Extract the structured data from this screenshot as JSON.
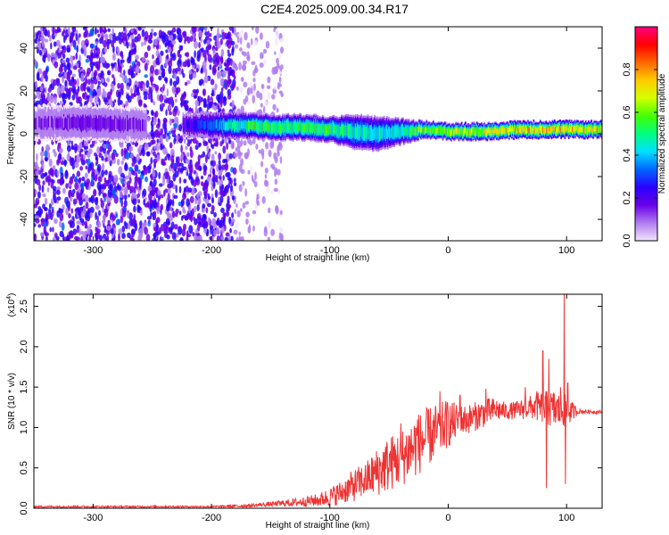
{
  "page": {
    "title": "C2E4.2025.009.00.34.R17"
  },
  "chart_data": [
    {
      "type": "heatmap",
      "xlabel": "Height of straight line (km)",
      "ylabel": "Frequency (Hz)",
      "xlim": [
        -350,
        130
      ],
      "ylim": [
        -50,
        50
      ],
      "xticks": [
        -300,
        -200,
        -100,
        0,
        100
      ],
      "yticks": [
        -40,
        -20,
        0,
        20,
        40
      ],
      "colorbar": {
        "label": "Normalized spectral amplitude",
        "range": [
          0.0,
          1.0
        ],
        "ticks": [
          0.0,
          0.2,
          0.4,
          0.6,
          0.8
        ],
        "colors": [
          "#f3e6fb",
          "#b07cf0",
          "#6a00e8",
          "#2a00ff",
          "#0066ff",
          "#00e0ff",
          "#00ff80",
          "#44ff00",
          "#d4ff00",
          "#ffcc00",
          "#ff6600",
          "#ff0000",
          "#ff0080"
        ]
      },
      "band": {
        "x": [
          -350,
          -300,
          -250,
          -220,
          -180,
          -150,
          -120,
          -100,
          -80,
          -60,
          -40,
          -20,
          0,
          20,
          40,
          60,
          80,
          100,
          130
        ],
        "center_hz": [
          5,
          5,
          4,
          4,
          4,
          3,
          3,
          2,
          1,
          0,
          1,
          2,
          1,
          1,
          1,
          2,
          2,
          2,
          2
        ],
        "peak_amplitude": [
          0.15,
          0.18,
          0.15,
          0.25,
          0.55,
          0.62,
          0.62,
          0.6,
          0.55,
          0.5,
          0.55,
          0.7,
          0.75,
          0.78,
          0.8,
          0.85,
          0.85,
          0.85,
          0.8
        ],
        "half_width_hz": [
          4,
          4,
          4,
          3,
          3,
          3,
          3,
          3,
          4,
          4,
          3,
          2,
          2,
          2,
          2,
          2,
          2,
          2,
          2
        ]
      },
      "background_noise": {
        "regions": [
          {
            "x": [
              -350,
              -180
            ],
            "amplitude": 0.2
          },
          {
            "x": [
              -180,
              -140
            ],
            "amplitude": 0.08
          }
        ]
      }
    },
    {
      "type": "line",
      "xlabel": "Height of straight line (km)",
      "ylabel": "SNR (10 * v/v)",
      "scale_label": "(x10",
      "scale_exp": "4",
      "scale_close": ")",
      "xlim": [
        -350,
        130
      ],
      "ylim": [
        0,
        2.65
      ],
      "xticks": [
        -300,
        -200,
        -100,
        0,
        100
      ],
      "yticks": [
        0.0,
        0.5,
        1.0,
        1.5,
        2.0,
        2.5
      ],
      "color": "#ee3333",
      "series": [
        {
          "x": [
            -350,
            -300,
            -250,
            -200,
            -170,
            -150,
            -130,
            -110,
            -100,
            -90,
            -80,
            -70,
            -60,
            -50,
            -40,
            -30,
            -20,
            -10,
            0,
            10,
            20,
            30,
            40,
            50,
            60,
            70,
            80,
            90,
            100,
            110,
            130
          ],
          "y": [
            0.02,
            0.02,
            0.02,
            0.02,
            0.03,
            0.05,
            0.07,
            0.1,
            0.14,
            0.2,
            0.28,
            0.35,
            0.45,
            0.55,
            0.62,
            0.75,
            0.85,
            0.95,
            1.05,
            1.08,
            1.12,
            1.18,
            1.22,
            1.2,
            1.22,
            1.25,
            1.25,
            1.22,
            1.2,
            1.2,
            1.19
          ],
          "noise_amplitude": [
            0.01,
            0.01,
            0.01,
            0.01,
            0.02,
            0.03,
            0.05,
            0.08,
            0.12,
            0.15,
            0.2,
            0.22,
            0.3,
            0.35,
            0.35,
            0.4,
            0.38,
            0.35,
            0.3,
            0.2,
            0.18,
            0.18,
            0.15,
            0.1,
            0.12,
            0.15,
            0.2,
            0.25,
            0.2,
            0.03,
            0.02
          ],
          "spikes": [
            {
              "x": -40,
              "y": 1.05
            },
            {
              "x": -26,
              "y": 1.1
            },
            {
              "x": -7,
              "y": 1.45
            },
            {
              "x": 10,
              "y": 1.4
            },
            {
              "x": 32,
              "y": 1.48
            },
            {
              "x": 65,
              "y": 1.5
            },
            {
              "x": 75,
              "y": 1.45
            },
            {
              "x": 80,
              "y": 1.95
            },
            {
              "x": 83,
              "y": 0.25
            },
            {
              "x": 85,
              "y": 1.85
            },
            {
              "x": 95,
              "y": 1.5
            },
            {
              "x": 98,
              "y": 2.65
            },
            {
              "x": 99,
              "y": 0.3
            },
            {
              "x": 101,
              "y": 1.55
            }
          ]
        }
      ]
    }
  ]
}
